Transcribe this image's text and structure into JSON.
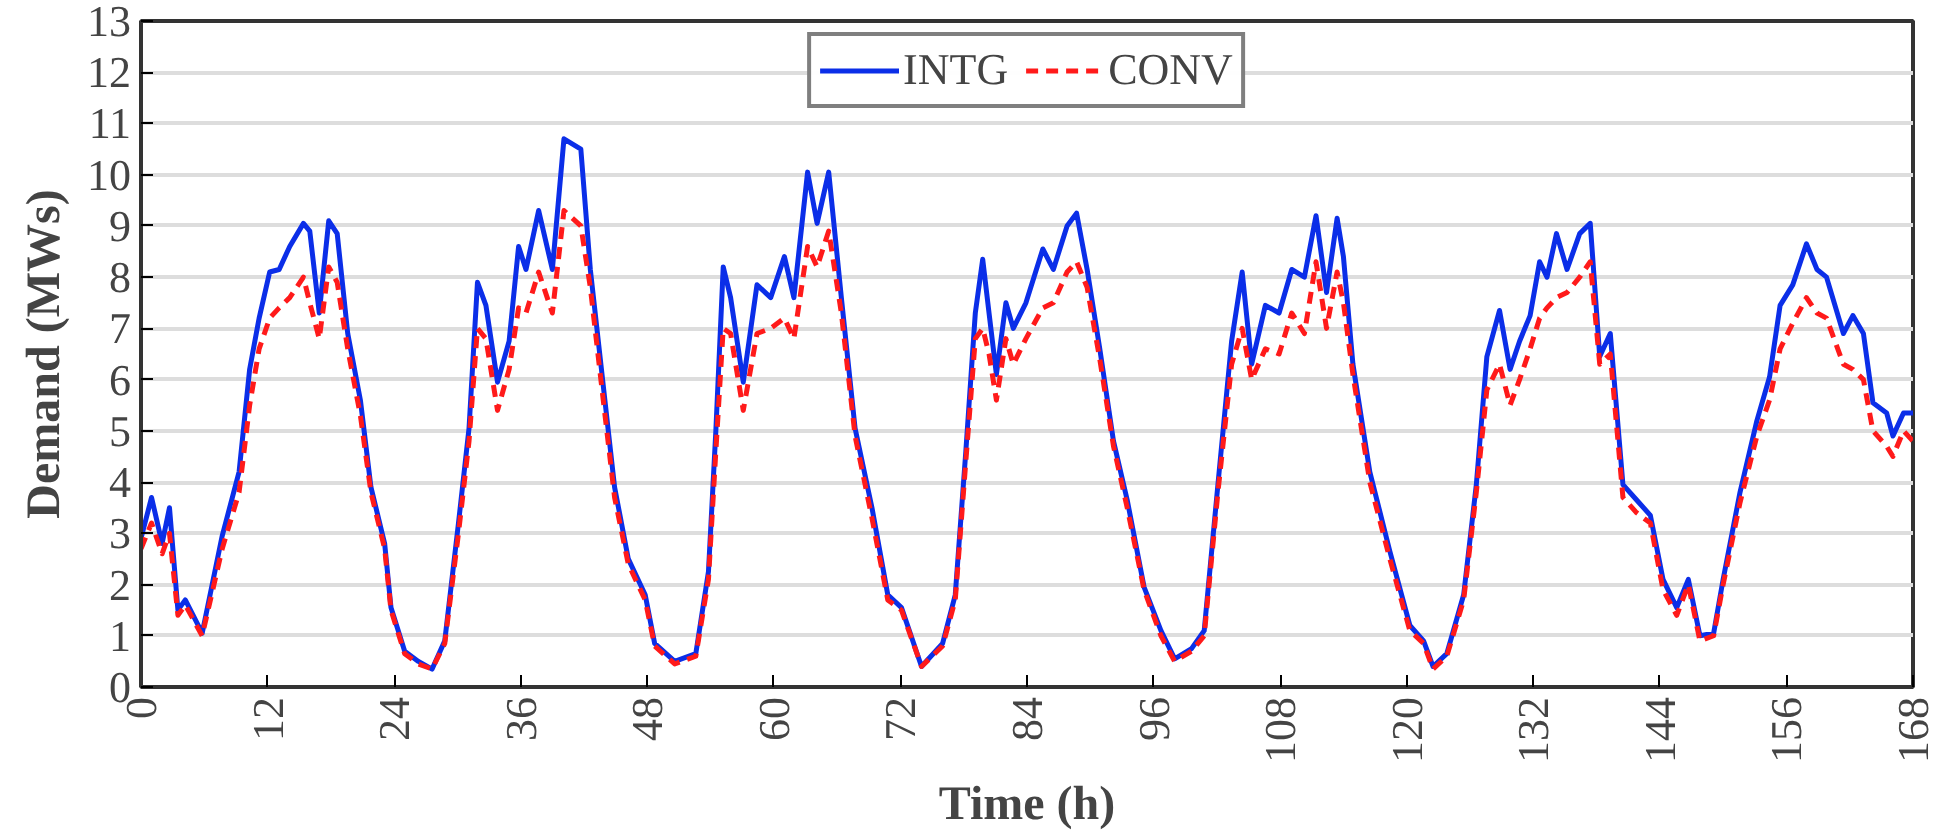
{
  "chart_data": {
    "type": "line",
    "xlabel": "Time (h)",
    "ylabel": "Demand (MWs)",
    "x": [
      0,
      1,
      2,
      2.7,
      3.5,
      4.2,
      5.8,
      7.7,
      9.3,
      10.3,
      11.2,
      12.2,
      13.1,
      14.1,
      15.4,
      16,
      16.9,
      17.8,
      18.6,
      19.6,
      20.8,
      21.8,
      23.1,
      23.7,
      25,
      26.3,
      27.6,
      28.8,
      30.1,
      31.1,
      31.9,
      32.7,
      33.8,
      34.9,
      35.8,
      36.5,
      37.7,
      39,
      40.1,
      41.7,
      42.6,
      43.6,
      44.9,
      46.2,
      47.8,
      48.7,
      50.6,
      52.6,
      53.8,
      54.5,
      55.2,
      55.9,
      57.1,
      58.4,
      59.7,
      61,
      61.9,
      63.2,
      64.1,
      65.2,
      66.4,
      67.7,
      69.3,
      70.8,
      72.1,
      74,
      76,
      77.2,
      78.2,
      79.1,
      79.8,
      80.4,
      81.1,
      82,
      82.7,
      83.9,
      85.5,
      86.5,
      87.8,
      88.7,
      89.7,
      90.9,
      92.2,
      93.5,
      95.1,
      96.7,
      98,
      99.6,
      100.8,
      102.1,
      103.4,
      104.4,
      105.3,
      106.6,
      107.9,
      109.1,
      110.3,
      111.4,
      112.4,
      113.4,
      114,
      114.9,
      116.5,
      118.4,
      120.3,
      121.6,
      122.5,
      123.8,
      125.4,
      126.6,
      127.6,
      128.8,
      129.8,
      130.7,
      131.7,
      132.6,
      133.3,
      134.2,
      135.2,
      136.4,
      137.4,
      138.3,
      139.3,
      140.5,
      141.8,
      143.1,
      144.3,
      145.6,
      146.7,
      147.8,
      149.1,
      150,
      151.6,
      153.2,
      154.4,
      155.4,
      156.6,
      157.9,
      158.9,
      159.8,
      161.4,
      162.3,
      163.3,
      164.2,
      165.5,
      166.1,
      167.1,
      168
    ],
    "series": [
      {
        "name": "INTG",
        "color": "#0b2ee8",
        "line_style": "solid",
        "values": [
          2.9,
          3.7,
          2.8,
          3.5,
          1.5,
          1.7,
          1.05,
          2.95,
          4.2,
          6.2,
          7.2,
          8.1,
          8.15,
          8.6,
          9.05,
          8.9,
          7.3,
          9.1,
          8.85,
          6.9,
          5.6,
          3.9,
          2.8,
          1.55,
          0.7,
          0.5,
          0.35,
          0.9,
          3.2,
          5.05,
          7.9,
          7.45,
          5.95,
          6.75,
          8.6,
          8.15,
          9.3,
          8.15,
          10.7,
          10.5,
          8.15,
          6.3,
          3.9,
          2.5,
          1.8,
          0.85,
          0.5,
          0.65,
          2.25,
          5.0,
          8.2,
          7.6,
          5.95,
          7.85,
          7.6,
          8.4,
          7.6,
          10.05,
          9.05,
          10.05,
          7.6,
          5.05,
          3.5,
          1.8,
          1.55,
          0.4,
          0.85,
          1.8,
          4.6,
          7.3,
          8.35,
          7.3,
          6.1,
          7.5,
          7.0,
          7.5,
          8.55,
          8.15,
          9.0,
          9.25,
          8.15,
          6.6,
          4.8,
          3.65,
          1.95,
          1.1,
          0.55,
          0.75,
          1.1,
          3.95,
          6.75,
          8.1,
          6.3,
          7.45,
          7.3,
          8.15,
          8.0,
          9.2,
          7.7,
          9.15,
          8.4,
          6.3,
          4.2,
          2.65,
          1.2,
          0.9,
          0.4,
          0.65,
          1.8,
          3.95,
          6.45,
          7.35,
          6.2,
          6.75,
          7.25,
          8.3,
          8.0,
          8.85,
          8.15,
          8.85,
          9.05,
          6.45,
          6.9,
          3.95,
          3.65,
          3.35,
          2.1,
          1.55,
          2.1,
          1.0,
          1.05,
          2.1,
          3.8,
          5.2,
          6.05,
          7.45,
          7.85,
          8.65,
          8.15,
          8.0,
          6.9,
          7.25,
          6.9,
          5.55,
          5.35,
          4.9,
          5.35,
          5.35
        ]
      },
      {
        "name": "CONV",
        "color": "#ff1a1a",
        "line_style": "dashed",
        "values": [
          2.7,
          3.2,
          2.6,
          3.0,
          1.4,
          1.6,
          1.0,
          2.7,
          3.8,
          5.5,
          6.6,
          7.2,
          7.4,
          7.6,
          8.0,
          7.5,
          6.8,
          8.2,
          7.9,
          6.6,
          5.3,
          3.8,
          2.7,
          1.5,
          0.65,
          0.45,
          0.35,
          0.85,
          3.0,
          4.8,
          7.0,
          6.8,
          5.4,
          6.2,
          7.4,
          7.3,
          8.1,
          7.3,
          9.3,
          9.0,
          7.8,
          6.0,
          3.7,
          2.4,
          1.7,
          0.8,
          0.45,
          0.6,
          2.1,
          4.6,
          7.0,
          6.9,
          5.4,
          6.9,
          7.0,
          7.2,
          6.8,
          8.6,
          8.2,
          8.9,
          7.3,
          4.9,
          3.3,
          1.7,
          1.5,
          0.4,
          0.8,
          1.7,
          4.4,
          6.8,
          7.0,
          6.5,
          5.6,
          6.8,
          6.3,
          6.8,
          7.4,
          7.5,
          8.1,
          8.3,
          7.8,
          6.4,
          4.7,
          3.5,
          1.9,
          1.0,
          0.5,
          0.7,
          1.0,
          3.8,
          6.3,
          7.0,
          6.0,
          6.6,
          6.5,
          7.3,
          6.9,
          8.3,
          7.0,
          8.1,
          7.5,
          6.1,
          4.0,
          2.5,
          1.1,
          0.85,
          0.35,
          0.6,
          1.7,
          3.8,
          5.8,
          6.3,
          5.5,
          6.0,
          6.6,
          7.2,
          7.4,
          7.6,
          7.7,
          8.0,
          8.3,
          6.3,
          6.5,
          3.7,
          3.4,
          3.2,
          1.9,
          1.4,
          2.0,
          0.9,
          1.0,
          2.0,
          3.6,
          4.9,
          5.6,
          6.6,
          7.1,
          7.6,
          7.3,
          7.2,
          6.3,
          6.2,
          6.0,
          5.0,
          4.7,
          4.5,
          5.0,
          4.8
        ]
      }
    ],
    "xlim": [
      0,
      168
    ],
    "xticks": [
      0,
      12,
      24,
      36,
      48,
      60,
      72,
      84,
      96,
      108,
      120,
      132,
      144,
      156,
      168
    ],
    "ylim": [
      0,
      13
    ],
    "yticks": [
      0,
      1,
      2,
      3,
      4,
      5,
      6,
      7,
      8,
      9,
      10,
      11,
      12,
      13
    ],
    "grid": "y",
    "legend": "top"
  }
}
